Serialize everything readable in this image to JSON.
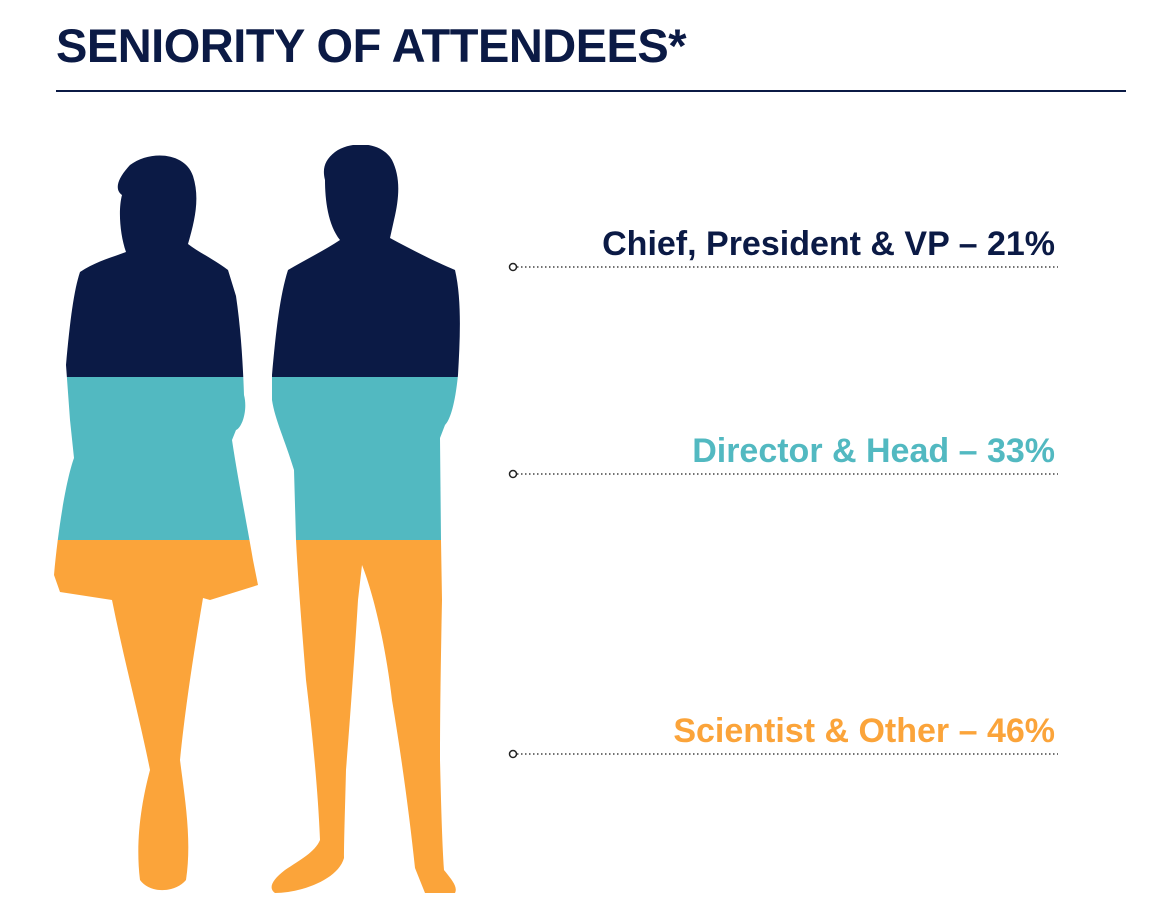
{
  "title": "SENIORITY OF ATTENDEES*",
  "colors": {
    "title": "#0b1a45",
    "chief": "#0b1a45",
    "director": "#52b9c1",
    "scientist": "#fba43a",
    "leader_line": "#444444"
  },
  "chart_data": {
    "type": "bar",
    "categories": [
      "Chief, President & VP",
      "Director & Head",
      "Scientist & Other"
    ],
    "values": [
      21,
      33,
      46
    ],
    "unit": "%",
    "labels": [
      "Chief, President & VP – 21%",
      "Director & Head – 33%",
      "Scientist & Other – 46%"
    ]
  }
}
